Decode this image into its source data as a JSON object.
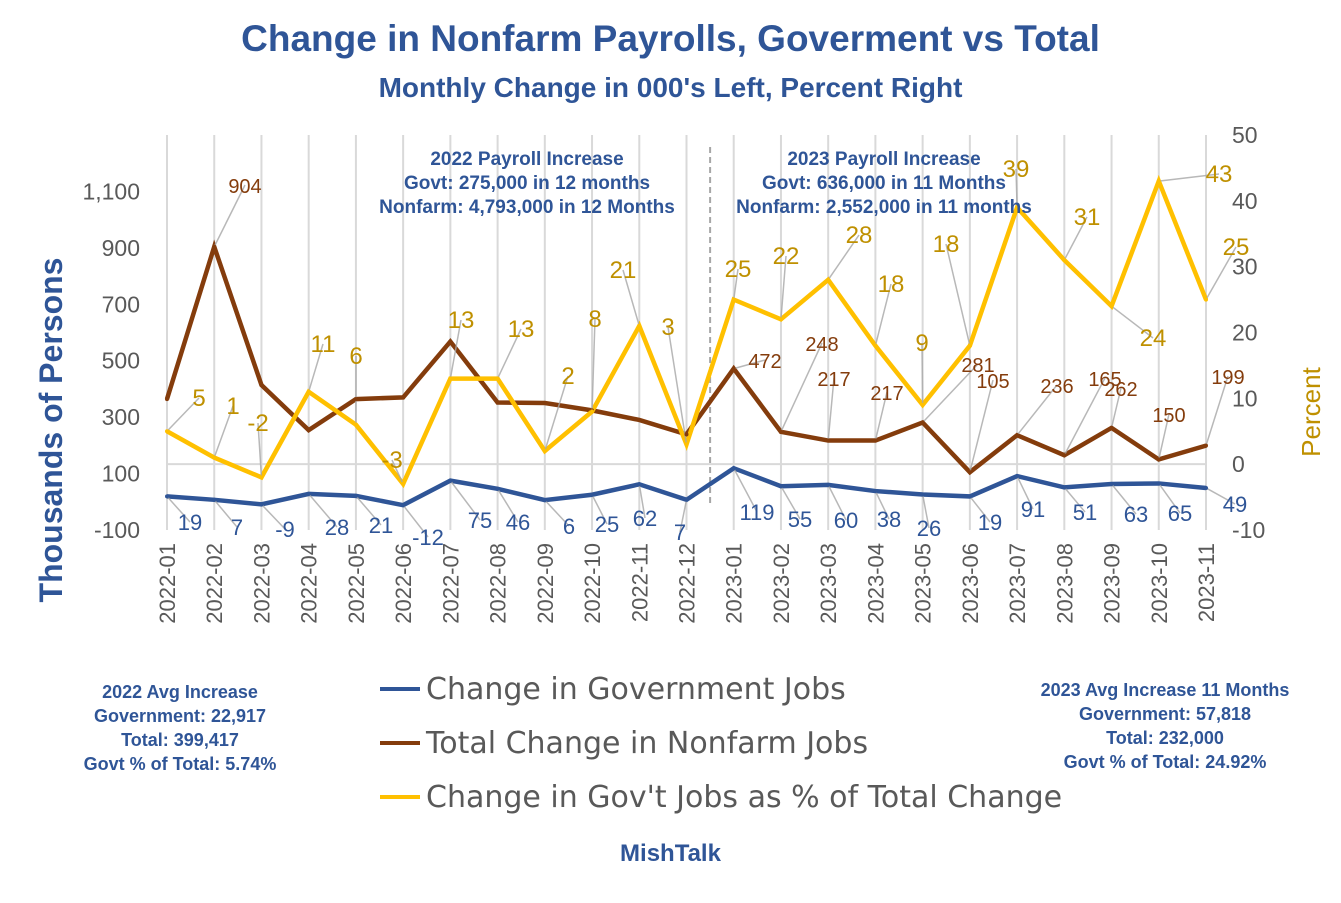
{
  "chart_data": {
    "type": "line",
    "title": "Change in Nonfarm Payrolls, Goverment vs Total",
    "subtitle": "Monthly Change in 000's Left, Percent Right",
    "ylabel": "Thousands of  Persons",
    "y2label": "Percent",
    "ylim": [
      -100,
      1300
    ],
    "yticks": [
      "-100",
      "100",
      "300",
      "500",
      "700",
      "900",
      "1,100"
    ],
    "y2lim": [
      -10,
      50
    ],
    "y2ticks": [
      "-10",
      "0",
      "10",
      "20",
      "30",
      "40",
      "50"
    ],
    "grid": "vertical",
    "legend_position": "bottom",
    "categories": [
      "2022-01",
      "2022-02",
      "2022-03",
      "2022-04",
      "2022-05",
      "2022-06",
      "2022-07",
      "2022-08",
      "2022-09",
      "2022-10",
      "2022-11",
      "2022-12",
      "2023-01",
      "2023-02",
      "2023-03",
      "2023-04",
      "2023-05",
      "2023-06",
      "2023-07",
      "2023-08",
      "2023-09",
      "2023-10",
      "2023-11"
    ],
    "series": [
      {
        "name": "Change in Government Jobs",
        "axis": "left",
        "color": "#2F5597",
        "values": [
          19,
          7,
          -9,
          28,
          21,
          -12,
          75,
          46,
          6,
          25,
          62,
          7,
          119,
          55,
          60,
          38,
          26,
          19,
          91,
          51,
          63,
          65,
          49
        ]
      },
      {
        "name": "Total Change in Nonfarm Jobs",
        "axis": "left",
        "color": "#843C0C",
        "values": [
          364,
          904,
          414,
          254,
          364,
          370,
          568,
          352,
          350,
          324,
          290,
          239,
          472,
          248,
          217,
          217,
          281,
          105,
          236,
          165,
          262,
          150,
          199
        ],
        "labeled": [
          false,
          true,
          false,
          false,
          false,
          false,
          false,
          false,
          false,
          false,
          false,
          false,
          true,
          true,
          true,
          true,
          true,
          true,
          true,
          true,
          true,
          true,
          true
        ]
      },
      {
        "name": "Change in Gov't Jobs as % of Total Change",
        "axis": "right",
        "color": "#FFC000",
        "label_color": "#BF9000",
        "values": [
          5,
          1,
          -2,
          11,
          6,
          -3,
          13,
          13,
          2,
          8,
          21,
          3,
          25,
          22,
          28,
          18,
          9,
          18,
          39,
          31,
          24,
          43,
          25
        ]
      }
    ],
    "annotations": {
      "y2022": [
        "2022 Payroll Increase",
        "Govt: 275,000 in 12 months",
        "Nonfarm: 4,793,000 in 12 Months"
      ],
      "y2023": [
        "2023 Payroll Increase",
        "Govt: 636,000 in 11 Months",
        "Nonfarm: 2,552,000 in 11 months"
      ]
    }
  },
  "avg2022": [
    "2022 Avg Increase",
    "Government: 22,917",
    "Total: 399,417",
    "Govt % of Total: 5.74%"
  ],
  "avg2023": [
    "2023 Avg Increase 11 Months",
    "Government: 57,818",
    "Total: 232,000",
    "Govt % of Total: 24.92%"
  ],
  "credit": "MishTalk"
}
